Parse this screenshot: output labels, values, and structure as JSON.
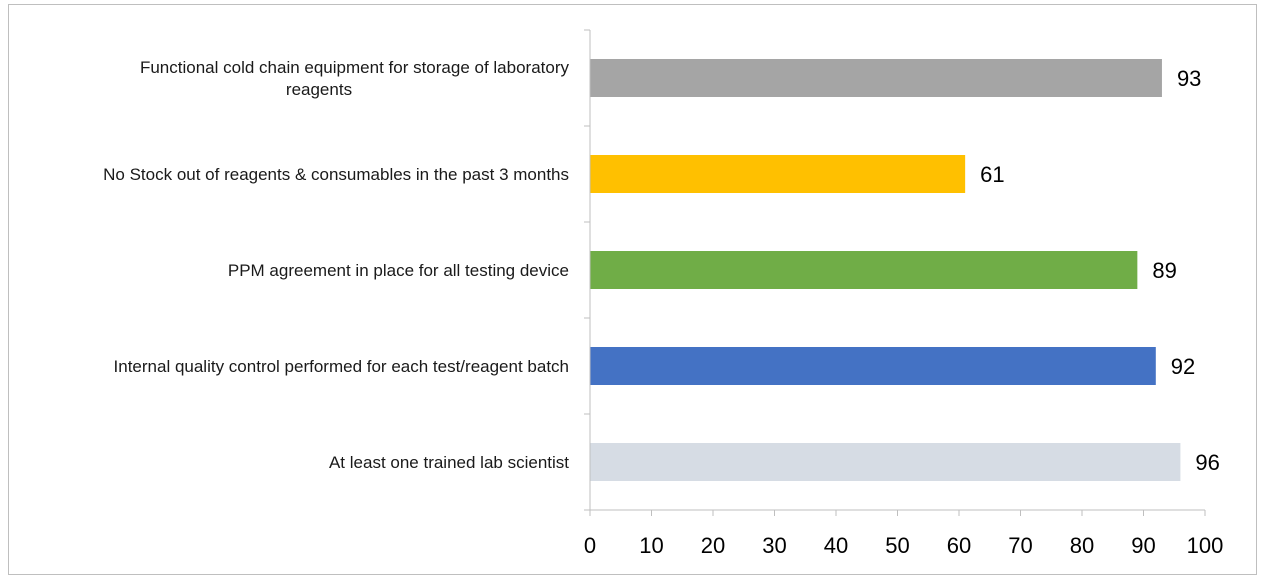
{
  "chart_data": {
    "type": "bar",
    "orientation": "horizontal",
    "title": "",
    "xlabel": "",
    "ylabel": "",
    "xlim": [
      0,
      100
    ],
    "x_ticks": [
      0,
      10,
      20,
      30,
      40,
      50,
      60,
      70,
      80,
      90,
      100
    ],
    "grid": false,
    "legend": "none",
    "categories": [
      [
        "Functional cold chain equipment for storage of laboratory",
        "reagents"
      ],
      [
        "No Stock out of reagents & consumables in the past 3 months"
      ],
      [
        "PPM agreement in place for all testing device"
      ],
      [
        "Internal quality control performed for each test/reagent batch"
      ],
      [
        "At least one trained lab scientist"
      ]
    ],
    "values": [
      93,
      61,
      89,
      92,
      96
    ],
    "colors": [
      "#a5a5a5",
      "#ffc000",
      "#70ad47",
      "#4472c4",
      "#d6dce4"
    ]
  }
}
